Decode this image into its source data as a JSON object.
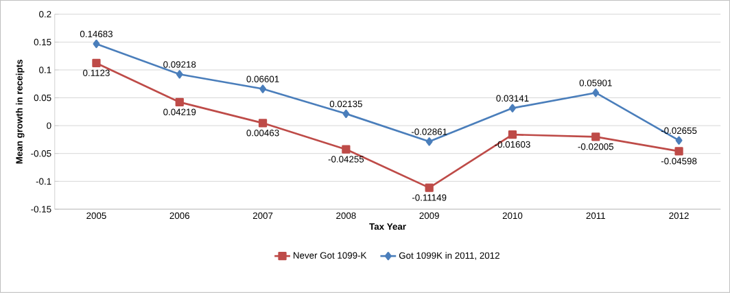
{
  "chart_data": {
    "type": "line",
    "xlabel": "Tax Year",
    "ylabel": "Mean growth in receipts",
    "categories": [
      "2005",
      "2006",
      "2007",
      "2008",
      "2009",
      "2010",
      "2011",
      "2012"
    ],
    "series": [
      {
        "name": "Never Got 1099-K",
        "color": "#be4b48",
        "marker": "square",
        "values": [
          0.1123,
          0.04219,
          0.00463,
          -0.04255,
          -0.11149,
          -0.01603,
          -0.02005,
          -0.04598
        ],
        "value_labels": [
          "0.1123",
          "0.04219",
          "0.00463",
          "-0.04255",
          "-0.11149",
          "-0.01603",
          "-0.02005",
          "-0.04598"
        ]
      },
      {
        "name": "Got 1099K in 2011, 2012",
        "color": "#4a7ebb",
        "marker": "diamond",
        "values": [
          0.14683,
          0.09218,
          0.06601,
          0.02135,
          -0.02861,
          0.03141,
          0.05901,
          -0.02655
        ],
        "value_labels": [
          "0.14683",
          "0.09218",
          "0.06601",
          "0.02135",
          "-0.02861",
          "0.03141",
          "0.05901",
          "-0.02655"
        ]
      }
    ],
    "ylim": [
      -0.15,
      0.2
    ],
    "yticks": [
      -0.15,
      -0.1,
      -0.05,
      0,
      0.05,
      0.1,
      0.15,
      0.2
    ],
    "grid": "y",
    "legend": "bottom",
    "line_style": "solid"
  }
}
